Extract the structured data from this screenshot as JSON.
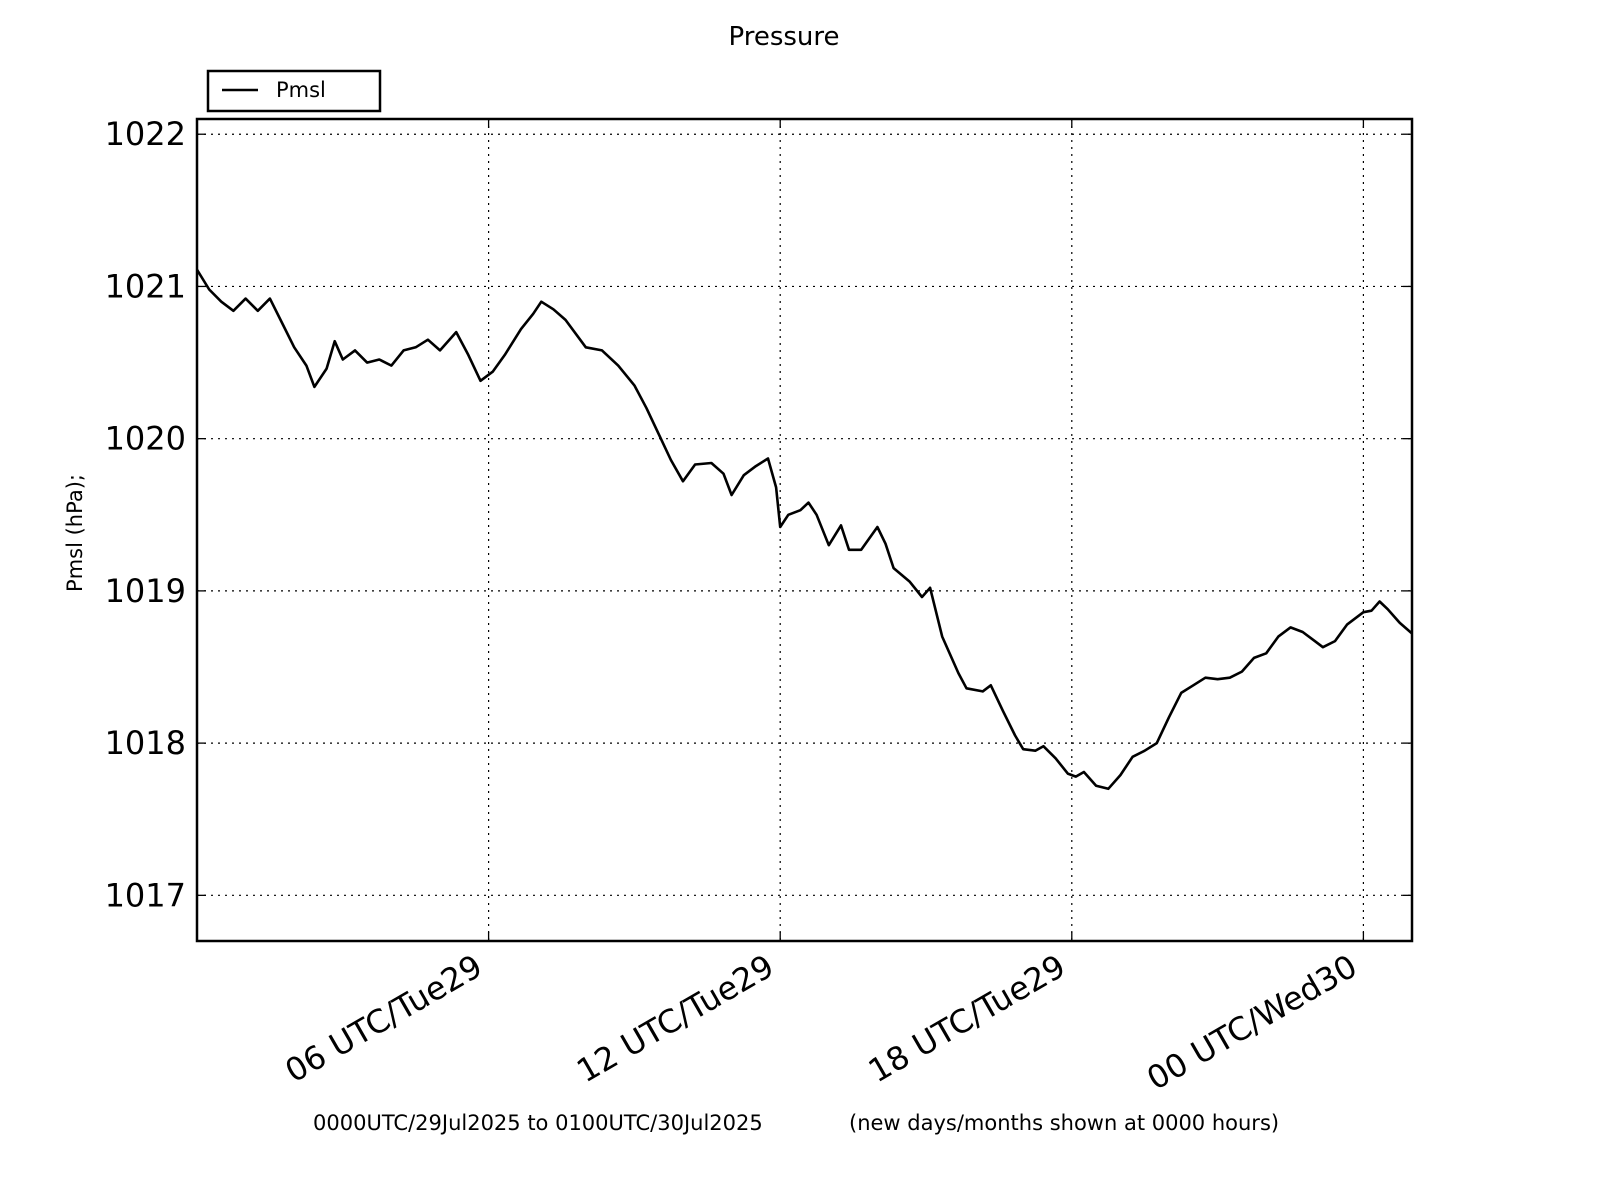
{
  "chart_data": {
    "type": "line",
    "title": "Pressure",
    "ylabel": "Pmsl  (hPa);",
    "xlabel": "",
    "x_start": "2025-07-29T00:00Z",
    "x_end": "2025-07-30T01:00Z",
    "xlim": [
      "2025-07-29T00:00Z",
      "2025-07-30T01:00Z"
    ],
    "ylim": [
      1016.7,
      1022.1
    ],
    "yticks": [
      1017,
      1018,
      1019,
      1020,
      1021,
      1022
    ],
    "ytick_labels": [
      "1017",
      "1018",
      "1019",
      "1020",
      "1021",
      "1022"
    ],
    "xticks": [
      {
        "x": "2025-07-29T06:00Z",
        "label": "06 UTC/Tue29"
      },
      {
        "x": "2025-07-29T12:00Z",
        "label": "12 UTC/Tue29"
      },
      {
        "x": "2025-07-29T18:00Z",
        "label": "18 UTC/Tue29"
      },
      {
        "x": "2025-07-30T00:00Z",
        "label": "00 UTC/Wed30"
      }
    ],
    "grid": true,
    "legend_position": "above-top-left",
    "footer_left": "0000UTC/29Jul2025 to 0100UTC/30Jul2025",
    "footer_right": "(new days/months shown at 0000 hours)",
    "series": [
      {
        "name": "Pmsl",
        "color": "#000000",
        "points": [
          [
            "2025-07-29T00:00Z",
            1021.11
          ],
          [
            "2025-07-29T00:15Z",
            1020.98
          ],
          [
            "2025-07-29T00:30Z",
            1020.9
          ],
          [
            "2025-07-29T00:45Z",
            1020.84
          ],
          [
            "2025-07-29T01:00Z",
            1020.92
          ],
          [
            "2025-07-29T01:15Z",
            1020.84
          ],
          [
            "2025-07-29T01:30Z",
            1020.92
          ],
          [
            "2025-07-29T01:45Z",
            1020.76
          ],
          [
            "2025-07-29T02:00Z",
            1020.6
          ],
          [
            "2025-07-29T02:15Z",
            1020.48
          ],
          [
            "2025-07-29T02:25Z",
            1020.34
          ],
          [
            "2025-07-29T02:40Z",
            1020.46
          ],
          [
            "2025-07-29T02:50Z",
            1020.64
          ],
          [
            "2025-07-29T03:00Z",
            1020.52
          ],
          [
            "2025-07-29T03:15Z",
            1020.58
          ],
          [
            "2025-07-29T03:30Z",
            1020.5
          ],
          [
            "2025-07-29T03:45Z",
            1020.52
          ],
          [
            "2025-07-29T04:00Z",
            1020.48
          ],
          [
            "2025-07-29T04:15Z",
            1020.58
          ],
          [
            "2025-07-29T04:30Z",
            1020.6
          ],
          [
            "2025-07-29T04:45Z",
            1020.65
          ],
          [
            "2025-07-29T05:00Z",
            1020.58
          ],
          [
            "2025-07-29T05:20Z",
            1020.7
          ],
          [
            "2025-07-29T05:35Z",
            1020.55
          ],
          [
            "2025-07-29T05:50Z",
            1020.38
          ],
          [
            "2025-07-29T06:05Z",
            1020.44
          ],
          [
            "2025-07-29T06:20Z",
            1020.55
          ],
          [
            "2025-07-29T06:40Z",
            1020.72
          ],
          [
            "2025-07-29T06:55Z",
            1020.82
          ],
          [
            "2025-07-29T07:05Z",
            1020.9
          ],
          [
            "2025-07-29T07:20Z",
            1020.85
          ],
          [
            "2025-07-29T07:35Z",
            1020.78
          ],
          [
            "2025-07-29T08:00Z",
            1020.6
          ],
          [
            "2025-07-29T08:20Z",
            1020.58
          ],
          [
            "2025-07-29T08:40Z",
            1020.48
          ],
          [
            "2025-07-29T09:00Z",
            1020.35
          ],
          [
            "2025-07-29T09:15Z",
            1020.2
          ],
          [
            "2025-07-29T09:30Z",
            1020.03
          ],
          [
            "2025-07-29T09:45Z",
            1019.86
          ],
          [
            "2025-07-29T10:00Z",
            1019.72
          ],
          [
            "2025-07-29T10:15Z",
            1019.83
          ],
          [
            "2025-07-29T10:35Z",
            1019.84
          ],
          [
            "2025-07-29T10:50Z",
            1019.77
          ],
          [
            "2025-07-29T11:00Z",
            1019.63
          ],
          [
            "2025-07-29T11:15Z",
            1019.76
          ],
          [
            "2025-07-29T11:30Z",
            1019.82
          ],
          [
            "2025-07-29T11:45Z",
            1019.87
          ],
          [
            "2025-07-29T11:55Z",
            1019.68
          ],
          [
            "2025-07-29T12:00Z",
            1019.42
          ],
          [
            "2025-07-29T12:10Z",
            1019.5
          ],
          [
            "2025-07-29T12:25Z",
            1019.53
          ],
          [
            "2025-07-29T12:35Z",
            1019.58
          ],
          [
            "2025-07-29T12:45Z",
            1019.5
          ],
          [
            "2025-07-29T13:00Z",
            1019.3
          ],
          [
            "2025-07-29T13:15Z",
            1019.43
          ],
          [
            "2025-07-29T13:25Z",
            1019.27
          ],
          [
            "2025-07-29T13:40Z",
            1019.27
          ],
          [
            "2025-07-29T14:00Z",
            1019.42
          ],
          [
            "2025-07-29T14:10Z",
            1019.31
          ],
          [
            "2025-07-29T14:20Z",
            1019.15
          ],
          [
            "2025-07-29T14:40Z",
            1019.06
          ],
          [
            "2025-07-29T14:55Z",
            1018.96
          ],
          [
            "2025-07-29T15:05Z",
            1019.02
          ],
          [
            "2025-07-29T15:20Z",
            1018.7
          ],
          [
            "2025-07-29T15:40Z",
            1018.46
          ],
          [
            "2025-07-29T15:50Z",
            1018.36
          ],
          [
            "2025-07-29T16:10Z",
            1018.34
          ],
          [
            "2025-07-29T16:20Z",
            1018.38
          ],
          [
            "2025-07-29T16:35Z",
            1018.21
          ],
          [
            "2025-07-29T16:50Z",
            1018.05
          ],
          [
            "2025-07-29T17:00Z",
            1017.96
          ],
          [
            "2025-07-29T17:15Z",
            1017.95
          ],
          [
            "2025-07-29T17:25Z",
            1017.98
          ],
          [
            "2025-07-29T17:40Z",
            1017.9
          ],
          [
            "2025-07-29T17:55Z",
            1017.8
          ],
          [
            "2025-07-29T18:05Z",
            1017.78
          ],
          [
            "2025-07-29T18:15Z",
            1017.81
          ],
          [
            "2025-07-29T18:30Z",
            1017.72
          ],
          [
            "2025-07-29T18:45Z",
            1017.7
          ],
          [
            "2025-07-29T19:00Z",
            1017.79
          ],
          [
            "2025-07-29T19:15Z",
            1017.91
          ],
          [
            "2025-07-29T19:30Z",
            1017.95
          ],
          [
            "2025-07-29T19:45Z",
            1018.0
          ],
          [
            "2025-07-29T20:00Z",
            1018.17
          ],
          [
            "2025-07-29T20:15Z",
            1018.33
          ],
          [
            "2025-07-29T20:30Z",
            1018.38
          ],
          [
            "2025-07-29T20:45Z",
            1018.43
          ],
          [
            "2025-07-29T21:00Z",
            1018.42
          ],
          [
            "2025-07-29T21:15Z",
            1018.43
          ],
          [
            "2025-07-29T21:30Z",
            1018.47
          ],
          [
            "2025-07-29T21:45Z",
            1018.56
          ],
          [
            "2025-07-29T22:00Z",
            1018.59
          ],
          [
            "2025-07-29T22:15Z",
            1018.7
          ],
          [
            "2025-07-29T22:30Z",
            1018.76
          ],
          [
            "2025-07-29T22:45Z",
            1018.73
          ],
          [
            "2025-07-29T23:00Z",
            1018.67
          ],
          [
            "2025-07-29T23:10Z",
            1018.63
          ],
          [
            "2025-07-29T23:25Z",
            1018.67
          ],
          [
            "2025-07-29T23:40Z",
            1018.78
          ],
          [
            "2025-07-30T00:00Z",
            1018.86
          ],
          [
            "2025-07-30T00:10Z",
            1018.87
          ],
          [
            "2025-07-30T00:20Z",
            1018.93
          ],
          [
            "2025-07-30T00:30Z",
            1018.88
          ],
          [
            "2025-07-30T00:45Z",
            1018.79
          ],
          [
            "2025-07-30T01:00Z",
            1018.72
          ]
        ]
      }
    ]
  }
}
